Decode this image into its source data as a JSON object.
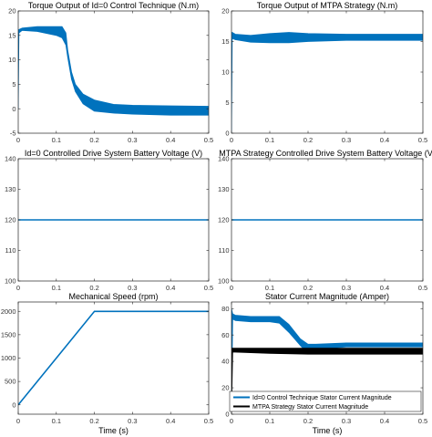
{
  "chart_data": [
    {
      "type": "line",
      "title": "Torque Output of Id=0 Control Technique (N.m)",
      "xlabel": "",
      "ylabel": "",
      "xlim": [
        0,
        0.5
      ],
      "ylim": [
        -5,
        20
      ],
      "xticks": [
        "0",
        "0.1",
        "0.2",
        "0.3",
        "0.4",
        "0.5"
      ],
      "yticks": [
        "-5",
        "0",
        "5",
        "10",
        "15",
        "20"
      ],
      "grid": false,
      "series": [
        {
          "color": "#0072BD",
          "band": {
            "x": [
              0,
              0.002,
              0.01,
              0.05,
              0.1,
              0.115,
              0.125,
              0.13,
              0.14,
              0.15,
              0.17,
              0.2,
              0.25,
              0.3,
              0.4,
              0.5
            ],
            "lo": [
              0,
              15.5,
              16.0,
              15.8,
              15.0,
              14.5,
              13.0,
              10.5,
              6.0,
              3.5,
              1.0,
              -0.5,
              -0.9,
              -1.1,
              -1.3,
              -1.3
            ],
            "hi": [
              16,
              16.2,
              16.5,
              16.8,
              16.8,
              16.8,
              15.5,
              12.0,
              7.5,
              5.0,
              3.0,
              1.8,
              0.9,
              0.7,
              0.6,
              0.5
            ]
          }
        }
      ]
    },
    {
      "type": "line",
      "title": "Torque Output of MTPA Strategy (N.m)",
      "xlabel": "",
      "ylabel": "",
      "xlim": [
        0,
        0.5
      ],
      "ylim": [
        0,
        20
      ],
      "xticks": [
        "0",
        "0.1",
        "0.2",
        "0.3",
        "0.4",
        "0.5"
      ],
      "yticks": [
        "0",
        "5",
        "10",
        "15",
        "20"
      ],
      "grid": false,
      "series": [
        {
          "color": "#0072BD",
          "band": {
            "x": [
              0,
              0.002,
              0.01,
              0.05,
              0.1,
              0.15,
              0.2,
              0.3,
              0.4,
              0.5
            ],
            "lo": [
              0,
              15.5,
              15.3,
              14.9,
              14.8,
              14.8,
              15.0,
              15.2,
              15.2,
              15.2
            ],
            "hi": [
              16.5,
              16.5,
              16.2,
              16.0,
              16.3,
              16.5,
              16.3,
              16.2,
              16.2,
              16.2
            ]
          }
        }
      ]
    },
    {
      "type": "line",
      "title": "Id=0 Controlled Drive System Battery Voltage (V)",
      "xlabel": "",
      "ylabel": "",
      "xlim": [
        0,
        0.5
      ],
      "ylim": [
        100,
        140
      ],
      "xticks": [
        "0",
        "0.1",
        "0.2",
        "0.3",
        "0.4",
        "0.5"
      ],
      "yticks": [
        "100",
        "110",
        "120",
        "130",
        "140"
      ],
      "grid": false,
      "series": [
        {
          "color": "#0072BD",
          "x": [
            0,
            0.5
          ],
          "y": [
            120,
            120
          ]
        }
      ]
    },
    {
      "type": "line",
      "title": "MTPA Strategy Controlled Drive System Battery Voltage (V)",
      "xlabel": "",
      "ylabel": "",
      "xlim": [
        0,
        0.5
      ],
      "ylim": [
        100,
        140
      ],
      "xticks": [
        "0",
        "0.1",
        "0.2",
        "0.3",
        "0.4",
        "0.5"
      ],
      "yticks": [
        "100",
        "110",
        "120",
        "130",
        "140"
      ],
      "grid": false,
      "series": [
        {
          "color": "#0072BD",
          "x": [
            0,
            0.5
          ],
          "y": [
            120,
            120
          ]
        }
      ]
    },
    {
      "type": "line",
      "title": "Mechanical Speed (rpm)",
      "xlabel": "Time (s)",
      "ylabel": "",
      "xlim": [
        0,
        0.5
      ],
      "ylim": [
        -200,
        2200
      ],
      "xticks": [
        "0",
        "0.1",
        "0.2",
        "0.3",
        "0.4",
        "0.5"
      ],
      "yticks": [
        "0",
        "500",
        "1000",
        "1500",
        "2000"
      ],
      "grid": false,
      "series": [
        {
          "color": "#0072BD",
          "x": [
            0,
            0.2,
            0.5
          ],
          "y": [
            0,
            2000,
            2000
          ]
        }
      ]
    },
    {
      "type": "line",
      "title": "Stator Current Magnitude (Amper)",
      "xlabel": "Time (s)",
      "ylabel": "",
      "xlim": [
        0,
        0.5
      ],
      "ylim": [
        0,
        85
      ],
      "xticks": [
        "0",
        "0.1",
        "0.2",
        "0.3",
        "0.4",
        "0.5"
      ],
      "yticks": [
        "0",
        "20",
        "40",
        "60",
        "80"
      ],
      "grid": false,
      "legend": "bottom-right",
      "series": [
        {
          "name": "Id=0 Control Technique Stator Current Magnitude",
          "color": "#0072BD",
          "band": {
            "x": [
              0,
              0.003,
              0.01,
              0.05,
              0.1,
              0.125,
              0.15,
              0.18,
              0.2,
              0.22,
              0.3,
              0.4,
              0.5
            ],
            "lo": [
              0,
              72,
              71,
              70,
              70,
              69,
              62,
              52,
              46,
              49,
              51,
              51,
              51
            ],
            "hi": [
              80,
              76,
              75,
              74,
              74,
              74,
              68,
              57,
              53,
              53,
              54,
              54,
              54
            ]
          }
        },
        {
          "name": "MTPA Strategy Stator Current Magnitude",
          "color": "#000000",
          "band": {
            "x": [
              0,
              0.003,
              0.01,
              0.1,
              0.2,
              0.3,
              0.4,
              0.5
            ],
            "lo": [
              0,
              47,
              47,
              46,
              45.5,
              45.5,
              45.5,
              45.5
            ],
            "hi": [
              50,
              50,
              50,
              50,
              50,
              50,
              50,
              50
            ]
          }
        }
      ]
    }
  ]
}
